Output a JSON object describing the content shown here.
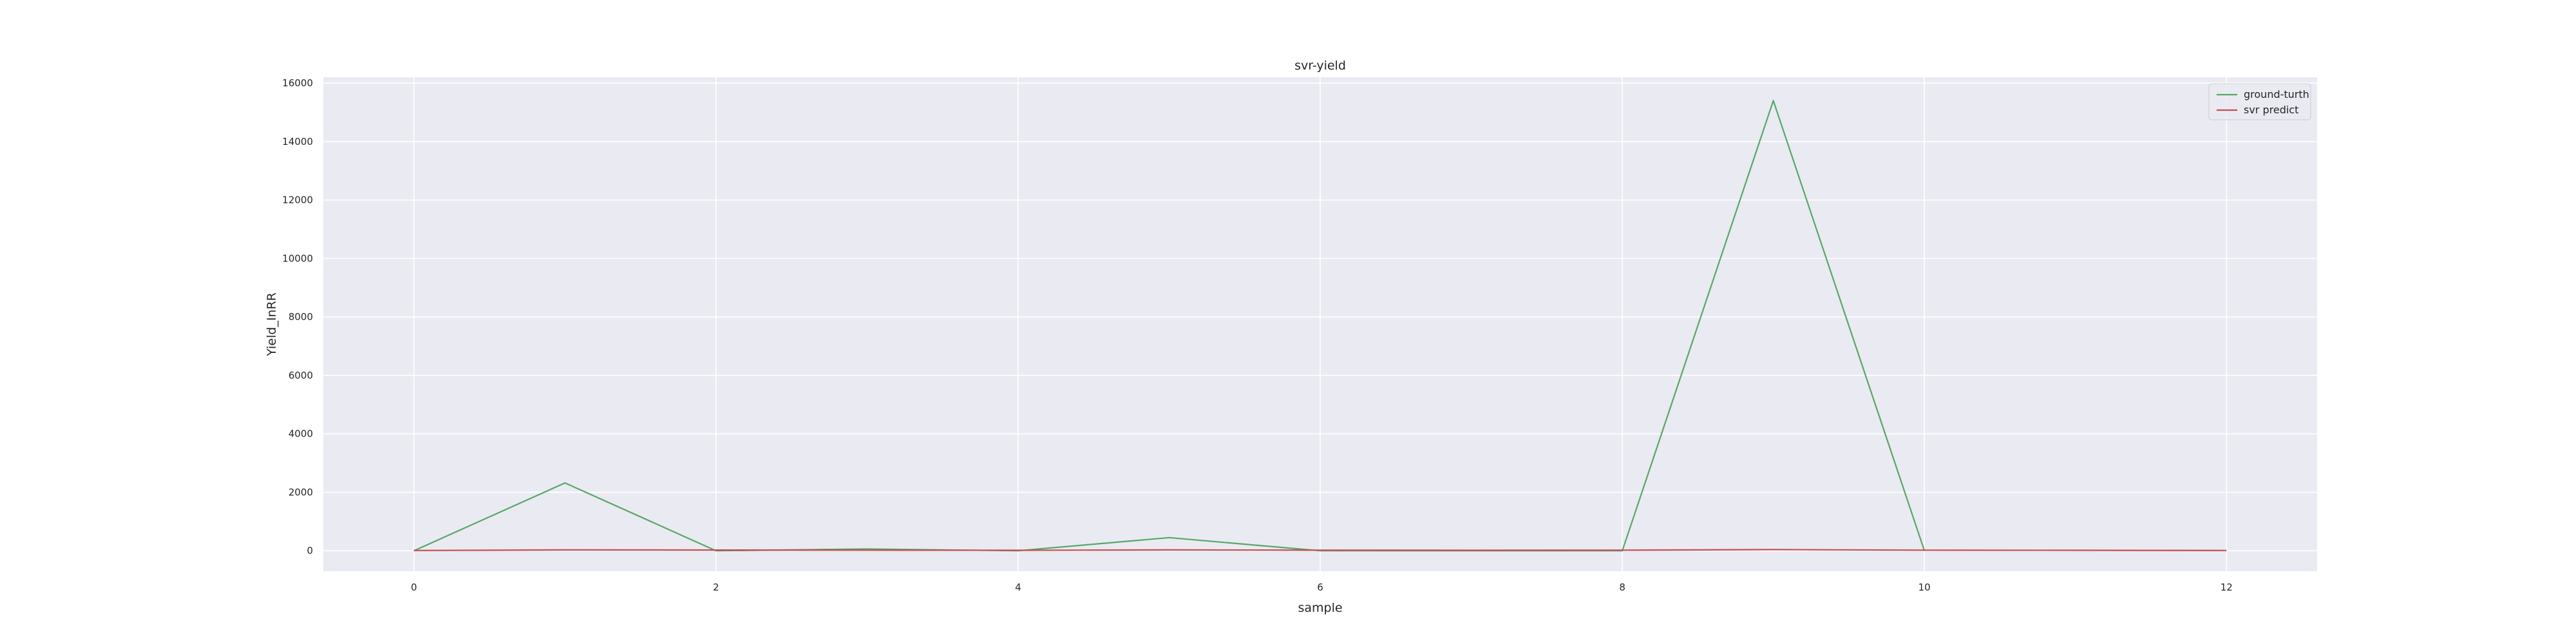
{
  "chart_data": {
    "type": "line",
    "title": "svr-yield",
    "xlabel": "sample",
    "ylabel": "Yield_InRR",
    "x": [
      0,
      1,
      2,
      3,
      4,
      5,
      6,
      7,
      8,
      9,
      10,
      11,
      12
    ],
    "xlim": [
      -0.6,
      12.6
    ],
    "ylim": [
      -700,
      16200
    ],
    "xticks": [
      0,
      2,
      4,
      6,
      8,
      10,
      12
    ],
    "yticks": [
      0,
      2000,
      4000,
      6000,
      8000,
      10000,
      12000,
      14000,
      16000
    ],
    "grid": true,
    "legend_position": "top-right",
    "background_color": "#eaeaf2",
    "series": [
      {
        "name": "ground-turth",
        "color": "#55a868",
        "values": [
          0,
          2320,
          0,
          60,
          0,
          450,
          0,
          0,
          0,
          15400,
          0,
          null,
          null
        ]
      },
      {
        "name": "svr predict",
        "color": "#c44e52",
        "values": [
          10,
          30,
          25,
          20,
          15,
          30,
          20,
          15,
          20,
          40,
          20,
          15,
          10
        ]
      }
    ]
  }
}
